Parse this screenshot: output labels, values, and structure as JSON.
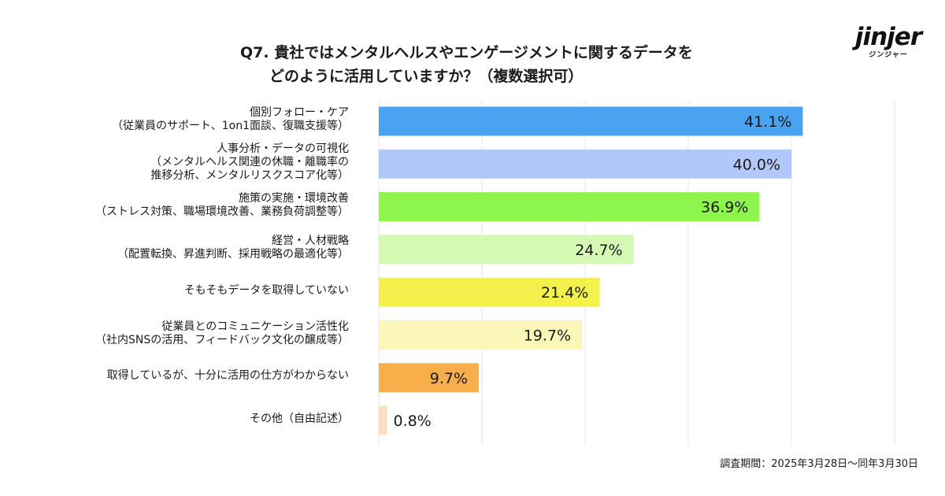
{
  "title": {
    "line1": "Q7. 貴社ではメンタルヘルスやエンゲージメントに関するデータを",
    "line2": "どのように活用していますか？（複数選択可）"
  },
  "logo": {
    "mark": "jinjer",
    "sub": "ジンジャー"
  },
  "footnote": "調査期間：2025年3月28日〜同年3月30日",
  "chart_data": {
    "type": "bar",
    "orientation": "horizontal",
    "title": "Q7. 貴社ではメンタルヘルスやエンゲージメントに関するデータをどのように活用していますか？（複数選択可）",
    "xlim": [
      0,
      50
    ],
    "grid": true,
    "categories": [
      [
        "個別フォロー・ケア",
        "（従業員のサポート、1on1面談、復職支援等）"
      ],
      [
        "人事分析・データの可視化",
        "（メンタルヘルス関連の休職・離職率の",
        "推移分析、メンタルリスクスコア化等）"
      ],
      [
        "施策の実施・環境改善",
        "（ストレス対策、職場環境改善、業務負荷調整等）"
      ],
      [
        "経営・人材戦略",
        "（配置転換、昇進判断、採用戦略の最適化等）"
      ],
      [
        "そもそもデータを取得していない"
      ],
      [
        "従業員とのコミュニケーション活性化",
        "（社内SNSの活用、フィードバック文化の醸成等）"
      ],
      [
        "取得しているが、十分に活用の仕方がわからない"
      ],
      [
        "その他（自由記述）"
      ]
    ],
    "values": [
      41.1,
      40.0,
      36.9,
      24.7,
      21.4,
      19.7,
      9.7,
      0.8
    ],
    "value_labels": [
      "41.1%",
      "40.0%",
      "36.9%",
      "24.7%",
      "21.4%",
      "19.7%",
      "9.7%",
      "0.8%"
    ],
    "colors": [
      "#4aa3f0",
      "#b3c8fa",
      "#8ef54f",
      "#d4f9b5",
      "#f4f04e",
      "#fbf7b8",
      "#f7ae4b",
      "#fbe0c0"
    ]
  }
}
